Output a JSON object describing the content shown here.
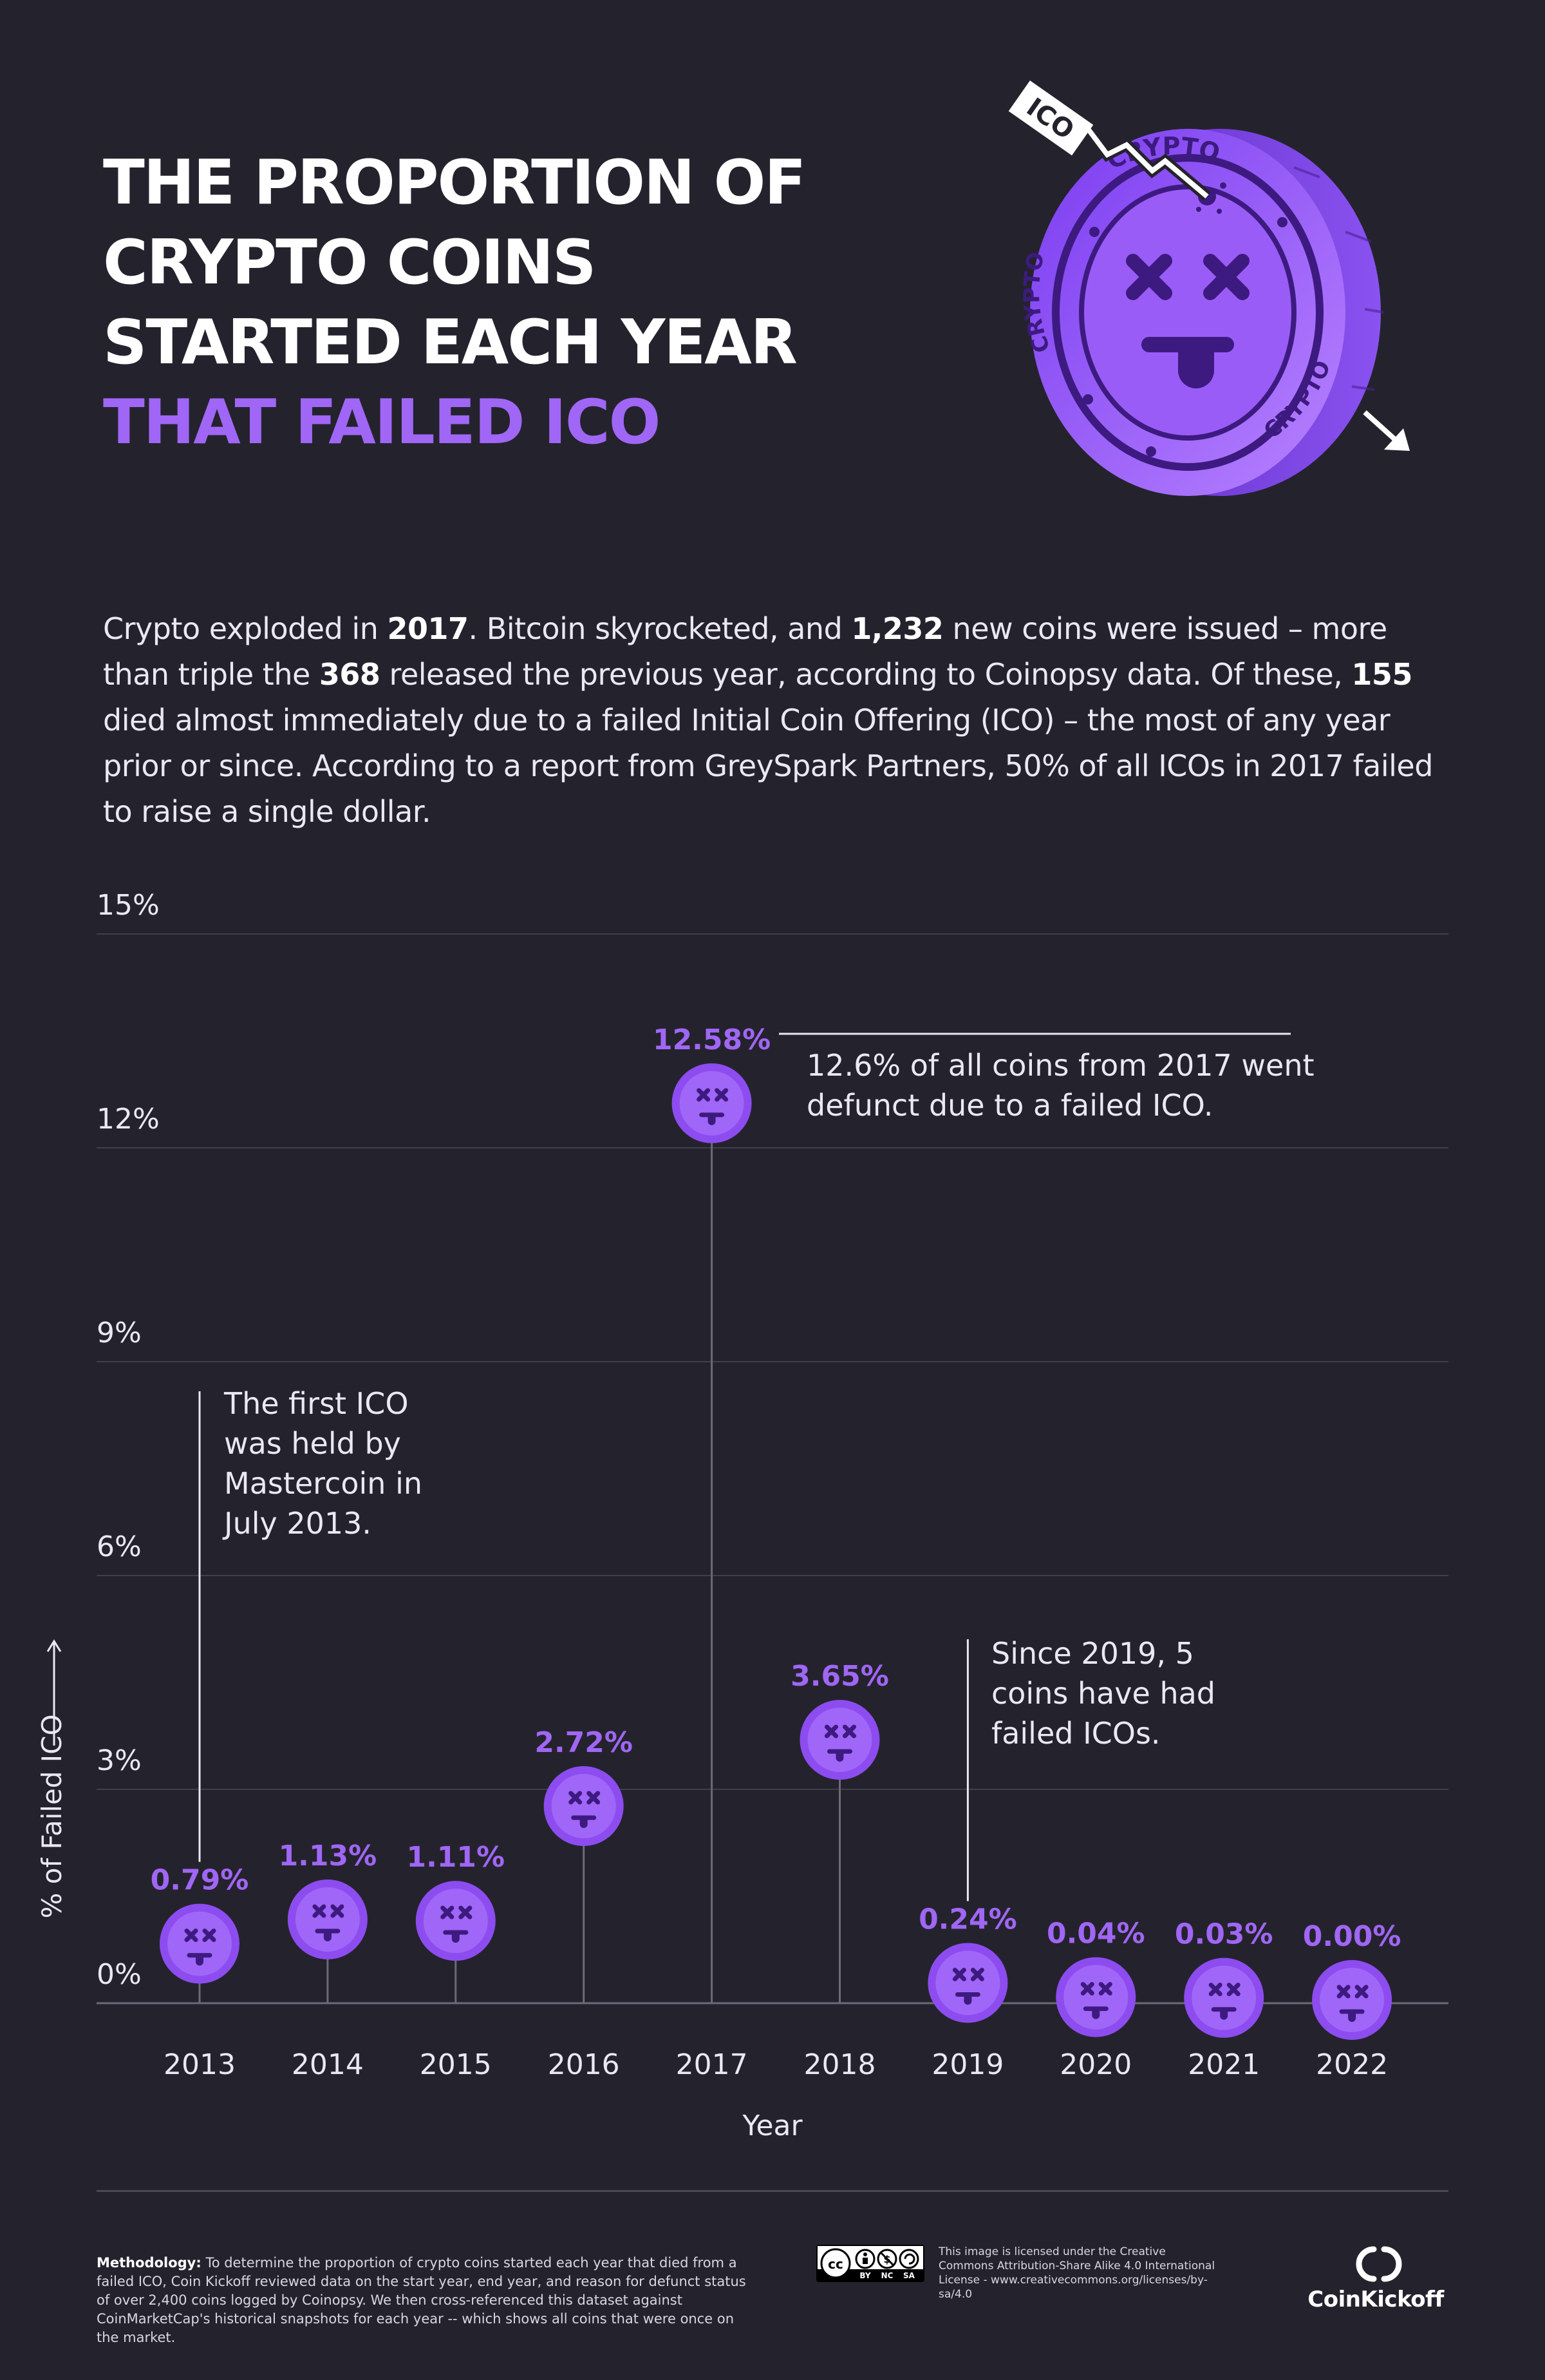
{
  "title": {
    "line1": "THE PROPORTION OF",
    "line2": "CRYPTO COINS",
    "line3": "STARTED EACH YEAR",
    "line4": "THAT FAILED ICO"
  },
  "hero": {
    "coin_label_top": "CRYPTO",
    "coin_label_left": "CRYPTO",
    "coin_label_right": "CRYPTO",
    "arrow_tag": "ICO"
  },
  "intro": {
    "p1": "Crypto exploded in ",
    "b1": "2017",
    "p2": ". Bitcoin skyrocketed, and ",
    "b2": "1,232",
    "p3": " new coins were issued – more than triple the ",
    "b3": "368",
    "p4": " released the previous year, according to Coinopsy data. Of these, ",
    "b4": "155",
    "p5": " died almost immediately due to a failed Initial Coin Offering (ICO) – the most of any year prior or since. According to a report from GreySpark Partners, 50% of all ICOs in 2017 failed to raise a single dollar."
  },
  "chart_data": {
    "type": "scatter",
    "categories": [
      "2013",
      "2014",
      "2015",
      "2016",
      "2017",
      "2018",
      "2019",
      "2020",
      "2021",
      "2022"
    ],
    "values": [
      0.79,
      1.13,
      1.11,
      2.72,
      12.58,
      3.65,
      0.24,
      0.04,
      0.03,
      0.0
    ],
    "value_labels": [
      "0.79%",
      "1.13%",
      "1.11%",
      "2.72%",
      "12.58%",
      "3.65%",
      "0.24%",
      "0.04%",
      "0.03%",
      "0.00%"
    ],
    "xlabel": "Year",
    "ylabel": "% of Failed ICO",
    "ylim": [
      0,
      15
    ],
    "yticks": [
      0,
      3,
      6,
      9,
      12,
      15
    ],
    "ytick_labels": [
      "0%",
      "3%",
      "6%",
      "9%",
      "12%",
      "15%"
    ],
    "grid": true,
    "annotations": [
      {
        "anchor_category": "2013",
        "lines": [
          "The first ICO",
          "was held by",
          "Mastercoin in",
          "July 2013."
        ]
      },
      {
        "anchor_category": "2017",
        "lines": [
          "12.6% of all coins from 2017 went",
          "defunct due to a failed ICO."
        ]
      },
      {
        "anchor_category": "2019",
        "lines": [
          "Since 2019, 5",
          "coins have had",
          "failed ICOs."
        ]
      }
    ],
    "colors": {
      "marker": "#8d4cf0",
      "marker_light": "#b07cff",
      "label": "#a066f5",
      "grid": "#3f3e4a",
      "stem": "#6b6a76"
    }
  },
  "methodology": {
    "label": "Methodology:",
    "text": " To determine the proportion of crypto coins started each year that died from a failed ICO, Coin Kickoff reviewed data on the start year, end year, and reason for defunct status of over 2,400 coins logged by Coinopsy. We then cross-referenced this dataset against CoinMarketCap's historical snapshots for each year -- which shows all coins that were once on the market."
  },
  "license": {
    "badge_cc": "cc",
    "badge_by": "BY",
    "badge_nc": "NC",
    "badge_sa": "SA",
    "text": "This image is licensed under the Creative Commons Attribution-Share Alike 4.0 International License - www.creativecommons.org/licenses/by-sa/4.0"
  },
  "brand": {
    "name": "CoinKickoff"
  }
}
